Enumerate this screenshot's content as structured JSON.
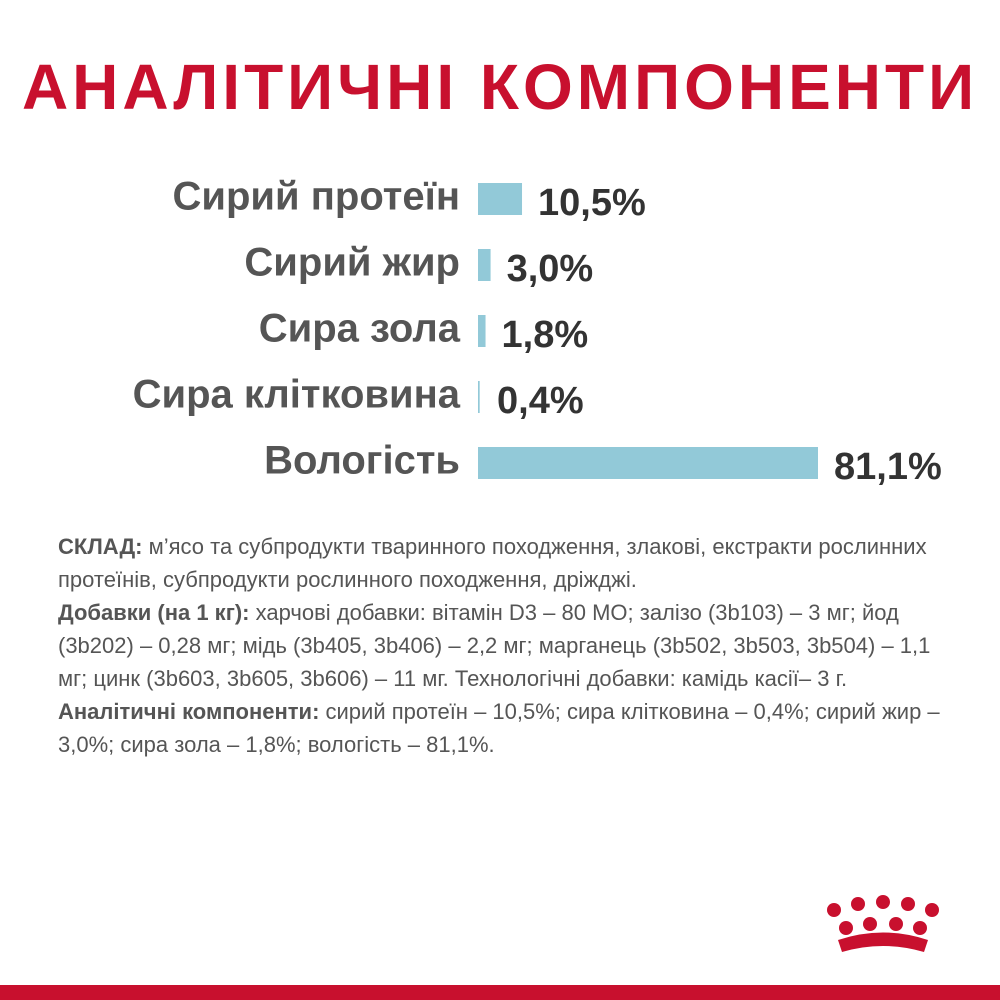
{
  "chart_data": {
    "type": "hbar",
    "title": "АНАЛІТИЧНІ КОМПОНЕНТИ",
    "categories": [
      "Сирий протеїн",
      "Сирий жир",
      "Сира зола",
      "Сира клітковина",
      "Вологість"
    ],
    "values": [
      10.5,
      3.0,
      1.8,
      0.4,
      81.1
    ],
    "value_labels": [
      "10,5%",
      "3,0%",
      "1,8%",
      "0,4%",
      "81,1%"
    ],
    "color": "#92c9d8"
  },
  "composition": [
    {
      "label": "СКЛАД:",
      "text": "м’ясо та субпродукти тваринного походження, злакові, екстракти рослинних протеїнів, субпродукти рослинного походження, дріжджі."
    },
    {
      "label": "Добавки (на 1 кг):",
      "text": "харчові добавки: вітамін D3 – 80 МО; залізо (3b103) – 3 мг; йод (3b202) – 0,28 мг; мідь (3b405, 3b406) – 2,2 мг; марганець (3b502, 3b503, 3b504) – 1,1 мг; цинк (3b603, 3b605, 3b606) – 11 мг. Технологічні добавки: камідь касії– 3 г."
    },
    {
      "label": "Аналітичні компоненти:",
      "text": "сирий протеїн – 10,5%; сира клітковина – 0,4%; сирий жир – 3,0%; сира зола – 1,8%; вологість – 81,1%."
    }
  ]
}
